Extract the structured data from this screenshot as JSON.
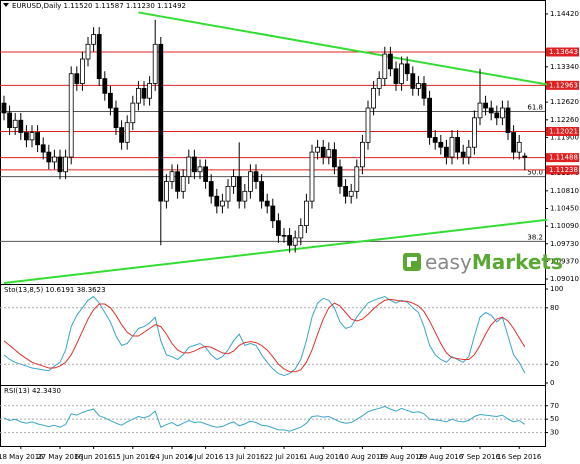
{
  "chart_data": [
    {
      "type": "candlestick",
      "title": "EURUSD,Daily 1.11520 1.11587 1.11230 1.11492",
      "categories": [
        null,
        null,
        null,
        "18 May 2016",
        null,
        null,
        null,
        null,
        null,
        null,
        "27 May 2016",
        null,
        null,
        null,
        null,
        null,
        "6 Jun 2016",
        null,
        null,
        null,
        null,
        null,
        null,
        "15 Jun 2016",
        null,
        null,
        null,
        null,
        null,
        null,
        "24 Jun 2016",
        null,
        null,
        null,
        null,
        null,
        "4 Jul 2016",
        null,
        null,
        null,
        null,
        null,
        null,
        "13 Jul 2016",
        null,
        null,
        null,
        null,
        null,
        null,
        "22 Jul 2016",
        null,
        null,
        null,
        null,
        null,
        null,
        "1 Aug 2016",
        null,
        null,
        null,
        null,
        null,
        null,
        "10 Aug 2016",
        null,
        null,
        null,
        null,
        null,
        null,
        "19 Aug 2016",
        null,
        null,
        null,
        null,
        null,
        null,
        "29 Aug 2016",
        null,
        null,
        null,
        null,
        null,
        null,
        "7 Sep 2016",
        null,
        null,
        null,
        null,
        null,
        null,
        "16 Sep 2016",
        null
      ],
      "ohlc": [
        [
          1.126,
          1.1275,
          1.1225,
          1.124
        ],
        [
          1.124,
          1.1255,
          1.1195,
          1.121
        ],
        [
          1.121,
          1.124,
          1.1195,
          1.1225
        ],
        [
          1.1225,
          1.124,
          1.1185,
          1.12
        ],
        [
          1.12,
          1.1215,
          1.117,
          1.1185
        ],
        [
          1.1185,
          1.1215,
          1.117,
          1.12
        ],
        [
          1.12,
          1.1215,
          1.116,
          1.1175
        ],
        [
          1.1175,
          1.119,
          1.1145,
          1.116
        ],
        [
          1.116,
          1.1175,
          1.1125,
          1.114
        ],
        [
          1.114,
          1.1165,
          1.1125,
          1.115
        ],
        [
          1.115,
          1.1165,
          1.1105,
          1.112
        ],
        [
          1.112,
          1.1165,
          1.1105,
          1.115
        ],
        [
          1.115,
          1.1335,
          1.1135,
          1.132
        ],
        [
          1.132,
          1.1335,
          1.1285,
          1.13
        ],
        [
          1.13,
          1.1365,
          1.1285,
          1.135
        ],
        [
          1.135,
          1.1395,
          1.1335,
          1.138
        ],
        [
          1.138,
          1.1415,
          1.1365,
          1.14
        ],
        [
          1.14,
          1.1415,
          1.1295,
          1.131
        ],
        [
          1.131,
          1.1325,
          1.1265,
          1.128
        ],
        [
          1.128,
          1.1295,
          1.1235,
          1.125
        ],
        [
          1.125,
          1.1265,
          1.1195,
          1.121
        ],
        [
          1.121,
          1.1225,
          1.1165,
          1.118
        ],
        [
          1.118,
          1.1235,
          1.1165,
          1.122
        ],
        [
          1.122,
          1.1275,
          1.1205,
          1.126
        ],
        [
          1.126,
          1.1305,
          1.1245,
          1.129
        ],
        [
          1.129,
          1.1305,
          1.1255,
          1.127
        ],
        [
          1.127,
          1.1315,
          1.1255,
          1.13
        ],
        [
          1.13,
          1.143,
          1.1285,
          1.138
        ],
        [
          1.138,
          1.1395,
          1.097,
          1.106
        ],
        [
          1.106,
          1.1115,
          1.1045,
          1.11
        ],
        [
          1.11,
          1.1135,
          1.1085,
          1.112
        ],
        [
          1.112,
          1.1135,
          1.1065,
          1.108
        ],
        [
          1.108,
          1.1125,
          1.1065,
          1.111
        ],
        [
          1.111,
          1.1165,
          1.1095,
          1.115
        ],
        [
          1.115,
          1.1165,
          1.1105,
          1.112
        ],
        [
          1.112,
          1.1145,
          1.1105,
          1.113
        ],
        [
          1.113,
          1.1145,
          1.1085,
          1.11
        ],
        [
          1.11,
          1.1115,
          1.1055,
          1.107
        ],
        [
          1.107,
          1.1085,
          1.1035,
          1.105
        ],
        [
          1.105,
          1.1075,
          1.1035,
          1.106
        ],
        [
          1.106,
          1.1105,
          1.1045,
          1.109
        ],
        [
          1.109,
          1.1125,
          1.1075,
          1.111
        ],
        [
          1.111,
          1.118,
          1.1045,
          1.106
        ],
        [
          1.106,
          1.1095,
          1.1045,
          1.108
        ],
        [
          1.108,
          1.1135,
          1.1065,
          1.112
        ],
        [
          1.112,
          1.1135,
          1.1085,
          1.11
        ],
        [
          1.11,
          1.1115,
          1.1045,
          1.106
        ],
        [
          1.106,
          1.1075,
          1.1035,
          1.105
        ],
        [
          1.105,
          1.1065,
          1.1005,
          1.102
        ],
        [
          1.102,
          1.1035,
          1.0975,
          1.099
        ],
        [
          1.099,
          1.1005,
          1.0975,
          1.099
        ],
        [
          1.099,
          1.1005,
          1.0955,
          1.097
        ],
        [
          1.097,
          1.1,
          1.0955,
          1.0985
        ],
        [
          1.0985,
          1.1025,
          1.097,
          1.101
        ],
        [
          1.101,
          1.1075,
          1.0995,
          1.106
        ],
        [
          1.106,
          1.1175,
          1.1045,
          1.116
        ],
        [
          1.116,
          1.1185,
          1.1145,
          1.117
        ],
        [
          1.117,
          1.1185,
          1.1135,
          1.115
        ],
        [
          1.115,
          1.118,
          1.1135,
          1.1165
        ],
        [
          1.1165,
          1.118,
          1.1115,
          1.113
        ],
        [
          1.113,
          1.1145,
          1.1075,
          1.109
        ],
        [
          1.109,
          1.1105,
          1.1055,
          1.107
        ],
        [
          1.107,
          1.1095,
          1.1055,
          1.108
        ],
        [
          1.108,
          1.1145,
          1.1065,
          1.113
        ],
        [
          1.113,
          1.1195,
          1.1115,
          1.118
        ],
        [
          1.118,
          1.1265,
          1.1165,
          1.125
        ],
        [
          1.125,
          1.1305,
          1.1235,
          1.129
        ],
        [
          1.129,
          1.1325,
          1.1275,
          1.131
        ],
        [
          1.131,
          1.1375,
          1.1295,
          1.136
        ],
        [
          1.136,
          1.1375,
          1.1315,
          1.133
        ],
        [
          1.133,
          1.1345,
          1.1285,
          1.13
        ],
        [
          1.13,
          1.1355,
          1.1285,
          1.134
        ],
        [
          1.134,
          1.1355,
          1.1305,
          1.132
        ],
        [
          1.132,
          1.1335,
          1.1275,
          1.129
        ],
        [
          1.129,
          1.1315,
          1.1275,
          1.13
        ],
        [
          1.13,
          1.1315,
          1.1255,
          1.127
        ],
        [
          1.127,
          1.1285,
          1.1175,
          1.119
        ],
        [
          1.119,
          1.1205,
          1.1165,
          1.118
        ],
        [
          1.118,
          1.1195,
          1.1155,
          1.117
        ],
        [
          1.117,
          1.1185,
          1.1135,
          1.115
        ],
        [
          1.115,
          1.1205,
          1.1135,
          1.119
        ],
        [
          1.119,
          1.1205,
          1.1145,
          1.116
        ],
        [
          1.116,
          1.1175,
          1.1135,
          1.115
        ],
        [
          1.115,
          1.1185,
          1.1135,
          1.117
        ],
        [
          1.117,
          1.1245,
          1.1155,
          1.123
        ],
        [
          1.123,
          1.133,
          1.1215,
          1.126
        ],
        [
          1.126,
          1.1275,
          1.1235,
          1.125
        ],
        [
          1.125,
          1.1265,
          1.1225,
          1.124
        ],
        [
          1.124,
          1.1255,
          1.1215,
          1.123
        ],
        [
          1.123,
          1.1265,
          1.1215,
          1.125
        ],
        [
          1.125,
          1.1265,
          1.1185,
          1.12
        ],
        [
          1.12,
          1.1215,
          1.1145,
          1.116
        ],
        [
          1.116,
          1.1195,
          1.1145,
          1.118
        ],
        [
          1.1152,
          1.11587,
          1.1123,
          1.11492
        ]
      ],
      "bull_color": "#ffffff",
      "bear_color": "#000000",
      "ylim": [
        1.0895,
        1.145
      ],
      "yticks": [
        {
          "value": 1.1442,
          "label": "1.14420"
        },
        {
          "value": 1.1334,
          "label": "1.13340"
        },
        {
          "value": 1.1298,
          "label": "1.12980"
        },
        {
          "value": 1.1262,
          "label": "1.12620"
        },
        {
          "value": 1.1226,
          "label": "1.12260"
        },
        {
          "value": 1.119,
          "label": "1.11900"
        },
        {
          "value": 1.1117,
          "label": "1.11170"
        },
        {
          "value": 1.1081,
          "label": "1.10810"
        },
        {
          "value": 1.1045,
          "label": "1.10450"
        },
        {
          "value": 1.1009,
          "label": "1.10090"
        },
        {
          "value": 1.0973,
          "label": "1.09730"
        },
        {
          "value": 1.0937,
          "label": "1.09370"
        },
        {
          "value": 1.0901,
          "label": "1.09010"
        }
      ],
      "levels": [
        1.13643,
        1.12963,
        1.12021,
        1.11488,
        1.11238
      ],
      "level_color": "#e02020",
      "fib_lines": [
        {
          "label": "61.8",
          "price": 1.1243
        },
        {
          "label": "50.0",
          "price": 1.111
        },
        {
          "label": "38.2",
          "price": 1.0978
        }
      ],
      "trendlines": [
        {
          "color": "#33dd33",
          "x": [
            24,
            97
          ],
          "y": [
            1.1445,
            1.1298
          ]
        },
        {
          "color": "#33dd33",
          "x": [
            0,
            97
          ],
          "y": [
            1.0893,
            1.1022
          ]
        }
      ],
      "logo": {
        "light": "easy",
        "bold": "Markets"
      }
    },
    {
      "type": "line",
      "title": "Sto(13,8,5) 10.6191 38.3623",
      "ylim": [
        0,
        100
      ],
      "yticks": [
        0,
        20,
        80,
        100
      ],
      "dashed": [
        20,
        80
      ],
      "series": [
        {
          "color": "#3aa6c9",
          "values": [
            30,
            25,
            22,
            20,
            18,
            16,
            15,
            14,
            13,
            18,
            22,
            35,
            60,
            72,
            80,
            88,
            92,
            85,
            75,
            65,
            50,
            40,
            42,
            50,
            58,
            60,
            64,
            70,
            45,
            30,
            28,
            25,
            30,
            38,
            40,
            42,
            38,
            30,
            25,
            28,
            35,
            45,
            52,
            40,
            42,
            40,
            30,
            22,
            15,
            10,
            8,
            10,
            15,
            25,
            45,
            70,
            85,
            90,
            88,
            80,
            65,
            58,
            60,
            70,
            78,
            85,
            88,
            90,
            92,
            88,
            85,
            88,
            86,
            80,
            75,
            60,
            40,
            30,
            25,
            22,
            28,
            25,
            22,
            28,
            50,
            70,
            75,
            72,
            65,
            70,
            50,
            30,
            22,
            10.6191
          ]
        },
        {
          "color": "#e0302a",
          "values": [
            45,
            40,
            35,
            30,
            26,
            22,
            20,
            18,
            16,
            16,
            18,
            22,
            30,
            42,
            55,
            68,
            78,
            84,
            84,
            80,
            72,
            62,
            54,
            50,
            50,
            54,
            58,
            62,
            60,
            52,
            42,
            35,
            32,
            32,
            34,
            37,
            39,
            38,
            35,
            32,
            31,
            34,
            40,
            43,
            44,
            43,
            40,
            35,
            28,
            20,
            15,
            12,
            12,
            14,
            22,
            35,
            52,
            68,
            80,
            85,
            82,
            75,
            68,
            66,
            68,
            73,
            79,
            84,
            88,
            89,
            88,
            87,
            87,
            85,
            82,
            76,
            66,
            54,
            42,
            32,
            27,
            26,
            25,
            25,
            30,
            40,
            52,
            62,
            68,
            70,
            66,
            58,
            48,
            38.3623
          ]
        }
      ]
    },
    {
      "type": "line",
      "title": "RSI(13) 42.3430",
      "ylim": [
        10,
        95
      ],
      "yticks": [
        30,
        50,
        70
      ],
      "dashed": [
        30,
        50,
        70
      ],
      "series": [
        {
          "color": "#3aa6c9",
          "values": [
            52,
            48,
            50,
            46,
            44,
            46,
            43,
            41,
            39,
            41,
            38,
            42,
            58,
            56,
            60,
            63,
            65,
            55,
            52,
            48,
            44,
            41,
            46,
            50,
            54,
            52,
            55,
            62,
            38,
            42,
            45,
            40,
            44,
            48,
            45,
            46,
            43,
            40,
            38,
            39,
            43,
            46,
            40,
            43,
            47,
            45,
            41,
            40,
            37,
            34,
            34,
            32,
            35,
            38,
            44,
            54,
            55,
            53,
            54,
            50,
            46,
            44,
            45,
            50,
            55,
            61,
            64,
            66,
            69,
            65,
            62,
            66,
            63,
            60,
            61,
            58,
            50,
            49,
            48,
            46,
            50,
            47,
            46,
            48,
            54,
            57,
            56,
            55,
            54,
            56,
            50,
            46,
            48,
            42.343
          ]
        }
      ]
    }
  ]
}
